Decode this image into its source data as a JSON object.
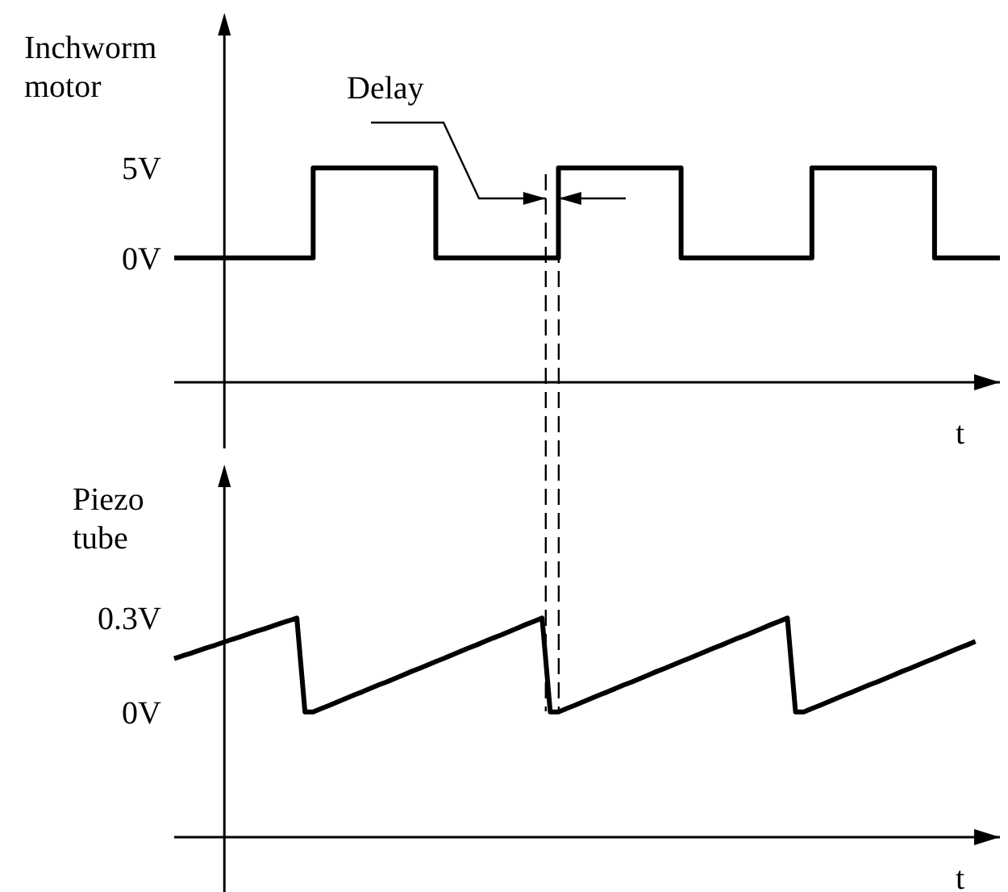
{
  "chart_data": [
    {
      "type": "step",
      "ylabel": "Inchworm motor",
      "xlabel": "t",
      "annotations": [
        "Delay"
      ],
      "categories": [
        null,
        null,
        null,
        null,
        null,
        null,
        null,
        null,
        null,
        null,
        null,
        null,
        null,
        null,
        null,
        null,
        null,
        null,
        null,
        null,
        null,
        null,
        null,
        null,
        null,
        null,
        null,
        null,
        null,
        null,
        null,
        null,
        null,
        null,
        null,
        null,
        null,
        null,
        null,
        null,
        null,
        null,
        null,
        null,
        null,
        null,
        null,
        null,
        null,
        null,
        null,
        null,
        null,
        null,
        null,
        null,
        null,
        null,
        null,
        null,
        null,
        null,
        null,
        null,
        null,
        null,
        null,
        null,
        null,
        null,
        null,
        null,
        null,
        null,
        null,
        null,
        null,
        null,
        null,
        null,
        null,
        null,
        null,
        null,
        null,
        null,
        null,
        null,
        null,
        null,
        null,
        null,
        null,
        null,
        null,
        null,
        null,
        null,
        null,
        null,
        null,
        null
      ],
      "series": [
        {
          "color": "#000000",
          "values": [
            0,
            0,
            0,
            0,
            0,
            0,
            0,
            0,
            0,
            0,
            0,
            0,
            0,
            0,
            0,
            0,
            0,
            5,
            5,
            5,
            5,
            5,
            5,
            5,
            5,
            5,
            5,
            5,
            5,
            5,
            5,
            5,
            0,
            0,
            0,
            0,
            0,
            0,
            0,
            0,
            0,
            0,
            0,
            0,
            0,
            0,
            0,
            5,
            5,
            5,
            5,
            5,
            5,
            5,
            5,
            5,
            5,
            5,
            5,
            5,
            5,
            5,
            0,
            0,
            0,
            0,
            0,
            0,
            0,
            0,
            0,
            0,
            0,
            0,
            0,
            0,
            0,
            0,
            5,
            5,
            5,
            5,
            5,
            5,
            5,
            5,
            5,
            5,
            5,
            5,
            5,
            5,
            5,
            0,
            0,
            0,
            0,
            0,
            0,
            0,
            0,
            0
          ]
        }
      ],
      "ylim": [
        -6.9,
        13.6
      ],
      "yticks": [
        {
          "value": 0,
          "label": "0V"
        },
        {
          "value": 5,
          "label": "5V"
        }
      ]
    },
    {
      "type": "line",
      "ylabel": "Piezo tube",
      "xlabel": "t",
      "categories": [
        null,
        null,
        null,
        null,
        null,
        null,
        null,
        null,
        null,
        null,
        null,
        null,
        null,
        null,
        null,
        null,
        null,
        null,
        null,
        null,
        null,
        null,
        null,
        null,
        null,
        null,
        null,
        null,
        null,
        null,
        null,
        null,
        null,
        null,
        null,
        null,
        null,
        null,
        null,
        null,
        null,
        null,
        null,
        null,
        null,
        null,
        null,
        null,
        null,
        null,
        null,
        null,
        null,
        null,
        null,
        null,
        null,
        null,
        null,
        null,
        null,
        null,
        null,
        null,
        null,
        null,
        null,
        null,
        null,
        null,
        null,
        null,
        null,
        null,
        null,
        null,
        null,
        null,
        null,
        null,
        null,
        null,
        null,
        null,
        null,
        null,
        null,
        null,
        null,
        null,
        null,
        null,
        null,
        null,
        null,
        null,
        null,
        null,
        null,
        null,
        null,
        null
      ],
      "series": [
        {
          "color": "#000000",
          "values": [
            0.17,
            0.179,
            0.187,
            0.196,
            0.205,
            0.213,
            0.222,
            0.231,
            0.239,
            0.248,
            0.257,
            0.265,
            0.274,
            0.283,
            0.291,
            0.3,
            0,
            0,
            0.011,
            0.021,
            0.032,
            0.043,
            0.054,
            0.064,
            0.075,
            0.086,
            0.096,
            0.107,
            0.118,
            0.129,
            0.139,
            0.15,
            0.161,
            0.171,
            0.182,
            0.193,
            0.204,
            0.214,
            0.225,
            0.236,
            0.246,
            0.257,
            0.268,
            0.279,
            0.289,
            0.3,
            0,
            0,
            0.011,
            0.021,
            0.032,
            0.043,
            0.054,
            0.064,
            0.075,
            0.086,
            0.096,
            0.107,
            0.118,
            0.129,
            0.139,
            0.15,
            0.161,
            0.171,
            0.182,
            0.193,
            0.204,
            0.214,
            0.225,
            0.236,
            0.246,
            0.257,
            0.268,
            0.279,
            0.289,
            0.3,
            0,
            0,
            0.011,
            0.021,
            0.032,
            0.043,
            0.054,
            0.064,
            0.075,
            0.086,
            0.096,
            0.107,
            0.118,
            0.129,
            0.139,
            0.15,
            0.161,
            0.171,
            0.182,
            0.193,
            0.204,
            0.214,
            0.225,
            null,
            null,
            null
          ]
        }
      ],
      "ylim": [
        -0.4,
        0.79
      ],
      "yticks": [
        {
          "value": 0,
          "label": "0V"
        },
        {
          "value": 0.3,
          "label": "0.3V"
        }
      ]
    }
  ]
}
